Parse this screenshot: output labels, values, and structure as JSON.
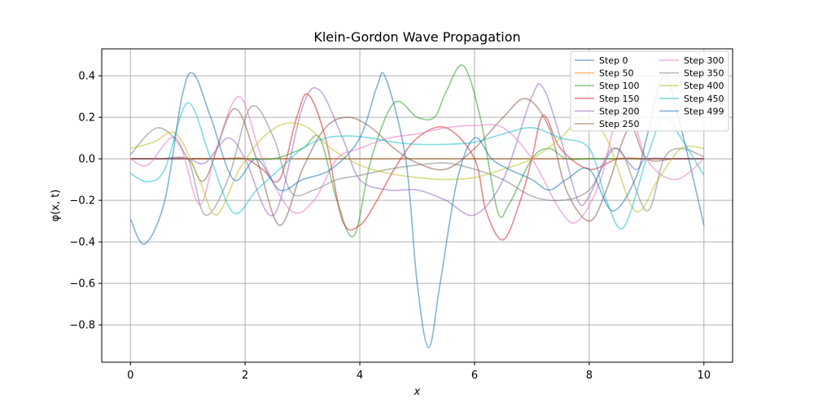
{
  "chart_data": {
    "type": "line",
    "title": "Klein-Gordon Wave Propagation",
    "xlabel": "x",
    "ylabel": "φ(x, t)",
    "xlim": [
      -0.5,
      10.5
    ],
    "ylim": [
      -0.98,
      0.53
    ],
    "xticks": [
      0,
      2,
      4,
      6,
      8,
      10
    ],
    "xtick_labels": [
      "0",
      "2",
      "4",
      "6",
      "8",
      "10"
    ],
    "yticks": [
      0.4,
      0.2,
      0.0,
      -0.2,
      -0.4,
      -0.6,
      -0.8
    ],
    "ytick_labels": [
      "0.4",
      "0.2",
      "0.0",
      "−0.2",
      "−0.4",
      "−0.6",
      "−0.8"
    ],
    "grid": true,
    "legend_position": "top-right",
    "series": [
      {
        "name": "Step 0",
        "color": "#1f77b4",
        "x": [
          0,
          5,
          10
        ],
        "y": [
          0.0,
          0.0,
          0.0
        ]
      },
      {
        "name": "Step 50",
        "color": "#ff7f0e",
        "x": [
          0,
          5,
          10
        ],
        "y": [
          0.0,
          0.0,
          0.0
        ]
      },
      {
        "name": "Step 100",
        "color": "#2ca02c",
        "x": [
          0,
          0.5,
          1.0,
          1.3,
          1.7,
          2.0,
          2.5,
          3.0,
          3.3,
          3.6,
          3.9,
          4.2,
          4.6,
          5.0,
          5.3,
          5.5,
          5.8,
          6.1,
          6.4,
          6.6,
          7.0,
          7.3,
          7.6,
          8.0,
          8.5,
          9.0,
          9.5,
          10.0
        ],
        "y": [
          0.0,
          0.0,
          0.0,
          0.0,
          0.0,
          0.0,
          0.0,
          0.05,
          0.1,
          -0.2,
          -0.37,
          0.0,
          0.27,
          0.2,
          0.2,
          0.32,
          0.45,
          0.2,
          -0.25,
          -0.22,
          0.0,
          0.05,
          0.0,
          0.0,
          0.0,
          0.0,
          0.0,
          0.0
        ]
      },
      {
        "name": "Step 150",
        "color": "#d62728",
        "x": [
          0,
          1.5,
          2.0,
          2.3,
          2.6,
          2.9,
          3.1,
          3.4,
          3.7,
          4.0,
          4.3,
          4.6,
          5.0,
          5.5,
          6.0,
          6.2,
          6.5,
          6.8,
          7.0,
          7.2,
          7.5,
          8.0,
          8.5,
          9.0,
          9.5,
          10.0
        ],
        "y": [
          0.0,
          0.0,
          0.0,
          -0.05,
          -0.1,
          0.2,
          0.31,
          0.1,
          -0.3,
          -0.32,
          -0.2,
          -0.05,
          0.1,
          0.15,
          0.0,
          -0.25,
          -0.39,
          -0.2,
          0.0,
          0.21,
          0.05,
          -0.05,
          0.0,
          0.0,
          0.0,
          0.0
        ]
      },
      {
        "name": "Step 200",
        "color": "#9467bd",
        "x": [
          0,
          0.5,
          1.0,
          1.3,
          1.7,
          2.0,
          2.5,
          3.0,
          3.3,
          3.7,
          4.0,
          4.5,
          5.0,
          5.5,
          6.0,
          6.5,
          7.0,
          7.2,
          7.5,
          7.8,
          8.0,
          8.4,
          8.8,
          9.0,
          9.5,
          10.0
        ],
        "y": [
          0.0,
          0.0,
          0.0,
          -0.02,
          0.1,
          0.0,
          -0.27,
          0.25,
          0.33,
          0.1,
          -0.1,
          -0.15,
          -0.15,
          -0.2,
          -0.27,
          -0.1,
          0.3,
          0.34,
          0.1,
          -0.2,
          -0.18,
          0.05,
          -0.05,
          0.0,
          0.0,
          0.0
        ]
      },
      {
        "name": "Step 250",
        "color": "#8c564b",
        "x": [
          0,
          0.5,
          1.0,
          1.3,
          1.8,
          2.2,
          2.6,
          3.0,
          3.4,
          3.8,
          4.2,
          4.6,
          5.0,
          5.5,
          6.0,
          6.5,
          6.9,
          7.3,
          7.6,
          8.0,
          8.3,
          8.7,
          9.0,
          9.5,
          10.0
        ],
        "y": [
          0.0,
          0.0,
          0.0,
          -0.1,
          0.24,
          0.0,
          -0.32,
          -0.05,
          0.15,
          0.2,
          0.15,
          0.05,
          -0.02,
          -0.05,
          0.05,
          0.2,
          0.29,
          0.15,
          -0.15,
          -0.3,
          -0.15,
          0.15,
          0.0,
          0.0,
          0.0
        ]
      },
      {
        "name": "Step 300",
        "color": "#e377c2",
        "x": [
          0,
          0.3,
          0.8,
          1.2,
          1.5,
          1.9,
          2.3,
          2.8,
          3.2,
          3.6,
          4.0,
          4.5,
          5.0,
          5.5,
          6.0,
          6.5,
          7.0,
          7.5,
          7.8,
          8.2,
          8.6,
          9.0,
          9.5,
          10.0
        ],
        "y": [
          0.0,
          -0.03,
          0.1,
          -0.22,
          0.05,
          0.3,
          0.0,
          -0.25,
          -0.2,
          0.0,
          0.05,
          0.1,
          0.12,
          0.15,
          0.16,
          0.15,
          0.0,
          -0.25,
          -0.3,
          -0.1,
          0.3,
          0.0,
          -0.1,
          0.0
        ]
      },
      {
        "name": "Step 350",
        "color": "#7f7f7f",
        "x": [
          0,
          0.5,
          1.0,
          1.3,
          1.7,
          2.1,
          2.5,
          2.8,
          3.2,
          3.6,
          4.0,
          4.5,
          5.0,
          5.5,
          6.0,
          6.5,
          7.0,
          7.5,
          8.0,
          8.5,
          9.0,
          9.3,
          9.6,
          10.0
        ],
        "y": [
          0.02,
          0.15,
          0.0,
          -0.27,
          -0.1,
          0.25,
          0.1,
          -0.16,
          -0.15,
          -0.1,
          -0.08,
          -0.05,
          -0.03,
          -0.02,
          -0.05,
          -0.1,
          -0.18,
          -0.2,
          -0.15,
          0.05,
          -0.25,
          0.0,
          0.05,
          0.01
        ]
      },
      {
        "name": "Step 400",
        "color": "#bcbd22",
        "x": [
          0,
          0.4,
          0.8,
          1.2,
          1.5,
          1.9,
          2.3,
          2.7,
          3.1,
          3.5,
          4.0,
          4.5,
          5.0,
          5.5,
          6.0,
          6.5,
          7.0,
          7.5,
          7.9,
          8.3,
          8.8,
          9.2,
          9.6,
          10.0
        ],
        "y": [
          0.05,
          0.08,
          0.12,
          -0.1,
          -0.27,
          -0.05,
          0.1,
          0.17,
          0.15,
          0.05,
          -0.03,
          -0.07,
          -0.09,
          -0.1,
          -0.09,
          -0.05,
          0.0,
          0.1,
          0.2,
          0.1,
          -0.25,
          -0.1,
          0.05,
          0.05
        ]
      },
      {
        "name": "Step 450",
        "color": "#17becf",
        "x": [
          0,
          0.3,
          0.6,
          1.0,
          1.4,
          1.8,
          2.2,
          2.6,
          3.0,
          3.4,
          3.8,
          4.2,
          4.6,
          5.0,
          5.5,
          6.0,
          6.5,
          7.0,
          7.5,
          8.0,
          8.3,
          8.6,
          9.0,
          9.3,
          9.6,
          10.0
        ],
        "y": [
          -0.07,
          -0.11,
          -0.05,
          0.27,
          0.0,
          -0.26,
          -0.15,
          -0.05,
          0.05,
          0.1,
          0.11,
          0.1,
          0.08,
          0.07,
          0.07,
          0.08,
          0.12,
          0.15,
          0.1,
          0.05,
          -0.2,
          -0.33,
          0.0,
          0.2,
          0.1,
          -0.08
        ]
      },
      {
        "name": "Step 499",
        "color": "#1f77b4",
        "x": [
          0,
          0.25,
          0.6,
          0.9,
          1.1,
          1.4,
          1.8,
          2.2,
          2.6,
          3.0,
          3.5,
          4.0,
          4.3,
          4.45,
          4.8,
          5.0,
          5.2,
          5.4,
          5.7,
          6.0,
          6.3,
          6.6,
          7.0,
          7.3,
          7.6,
          8.0,
          8.4,
          8.8,
          9.0,
          9.3,
          9.6,
          10.0
        ],
        "y": [
          -0.29,
          -0.41,
          -0.2,
          0.3,
          0.41,
          0.2,
          -0.1,
          0.0,
          -0.15,
          -0.1,
          -0.05,
          0.1,
          0.35,
          0.39,
          0.0,
          -0.6,
          -0.91,
          -0.6,
          -0.1,
          0.1,
          0.0,
          -0.05,
          -0.1,
          -0.15,
          -0.1,
          -0.05,
          -0.25,
          -0.1,
          0.1,
          0.4,
          0.15,
          -0.32
        ]
      }
    ]
  }
}
